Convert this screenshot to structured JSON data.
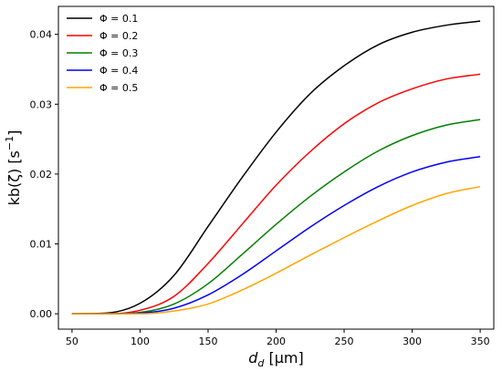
{
  "chart_data": {
    "type": "line",
    "xlabel_main": "d",
    "xlabel_sub": "d",
    "xlabel_unit": " [μm]",
    "ylabel_main": "kb(ζ) [s",
    "ylabel_sup": "−1",
    "ylabel_end": "]",
    "xlim": [
      40,
      360
    ],
    "ylim": [
      -0.0022,
      0.044
    ],
    "xticks": [
      50,
      100,
      150,
      200,
      250,
      300,
      350
    ],
    "xtick_labels": [
      "50",
      "100",
      "150",
      "200",
      "250",
      "300",
      "350"
    ],
    "yticks": [
      0.0,
      0.01,
      0.02,
      0.03,
      0.04
    ],
    "ytick_labels": [
      "0.00",
      "0.01",
      "0.02",
      "0.03",
      "0.04"
    ],
    "grid": false,
    "legend_position": "top-left",
    "x": [
      50,
      75,
      100,
      125,
      150,
      175,
      200,
      225,
      250,
      275,
      300,
      325,
      350
    ],
    "series": [
      {
        "name": "Φ = 0.1",
        "color": "#000000",
        "values": [
          0.0,
          0.0001,
          0.0015,
          0.0055,
          0.0125,
          0.0195,
          0.026,
          0.0315,
          0.0355,
          0.0385,
          0.0403,
          0.0413,
          0.0419
        ]
      },
      {
        "name": "Φ = 0.2",
        "color": "#ff0000",
        "values": [
          0.0,
          0.0,
          0.0005,
          0.0025,
          0.0072,
          0.0128,
          0.0184,
          0.0232,
          0.0272,
          0.0302,
          0.0322,
          0.0336,
          0.0343
        ]
      },
      {
        "name": "Φ = 0.3",
        "color": "#008000",
        "values": [
          0.0,
          0.0,
          0.0002,
          0.0014,
          0.0043,
          0.0085,
          0.0128,
          0.0168,
          0.0203,
          0.0233,
          0.0255,
          0.027,
          0.0278
        ]
      },
      {
        "name": "Φ = 0.4",
        "color": "#0000ff",
        "values": [
          0.0,
          0.0,
          0.0001,
          0.0008,
          0.0027,
          0.0056,
          0.009,
          0.0124,
          0.0155,
          0.0182,
          0.0203,
          0.0217,
          0.0225
        ]
      },
      {
        "name": "Φ = 0.5",
        "color": "#ffa500",
        "values": [
          0.0,
          0.0,
          0.0,
          0.0004,
          0.0014,
          0.0034,
          0.0058,
          0.0084,
          0.0109,
          0.0133,
          0.0155,
          0.0172,
          0.0182
        ]
      }
    ]
  }
}
